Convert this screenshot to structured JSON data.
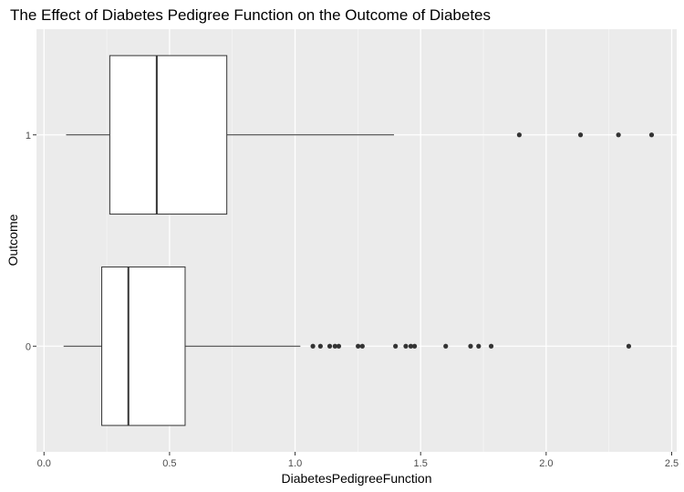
{
  "chart_data": {
    "type": "boxplot",
    "orientation": "horizontal",
    "title": "The Effect of Diabetes Pedigree Function on the Outcome of Diabetes",
    "xlabel": "DiabetesPedigreeFunction",
    "ylabel": "Outcome",
    "xlim": [
      -0.03,
      2.52
    ],
    "x_ticks": [
      {
        "value": 0.0,
        "label": "0.0"
      },
      {
        "value": 0.5,
        "label": "0.5"
      },
      {
        "value": 1.0,
        "label": "1.0"
      },
      {
        "value": 1.5,
        "label": "1.5"
      },
      {
        "value": 2.0,
        "label": "2.0"
      },
      {
        "value": 2.5,
        "label": "2.5"
      }
    ],
    "categories": [
      "0",
      "1"
    ],
    "boxes": [
      {
        "category": "0",
        "whisker_low": 0.078,
        "q1": 0.23,
        "median": 0.336,
        "q3": 0.562,
        "whisker_high": 1.021,
        "outliers": [
          1.071,
          1.101,
          1.138,
          1.159,
          1.174,
          1.251,
          1.268,
          1.4,
          1.441,
          1.461,
          1.476,
          1.6,
          1.699,
          1.731,
          1.781,
          2.329
        ]
      },
      {
        "category": "1",
        "whisker_low": 0.088,
        "q1": 0.262,
        "median": 0.449,
        "q3": 0.728,
        "whisker_high": 1.394,
        "outliers": [
          1.893,
          2.137,
          2.288,
          2.42
        ]
      }
    ],
    "grid": true,
    "legend": "none",
    "colors": {
      "panel": "#ebebeb",
      "grid_major": "#ffffff",
      "box_fill": "#ffffff",
      "box_line": "#333333",
      "outlier": "#333333"
    }
  }
}
